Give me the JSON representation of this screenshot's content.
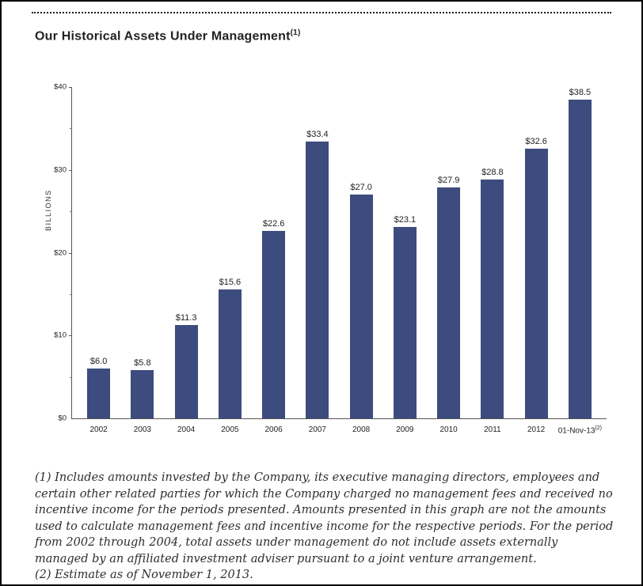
{
  "title": {
    "text": "Our Historical Assets Under Management",
    "superscript": "(1)"
  },
  "chart_data": {
    "type": "bar",
    "title": "Our Historical Assets Under Management",
    "ylabel": "BILLIONS",
    "xlabel": "",
    "ylim": [
      0,
      40
    ],
    "grid": "off",
    "bar_color": "#3d4b7e",
    "y_ticks": [
      "$40",
      "$30",
      "$20",
      "$10",
      "$0"
    ],
    "categories": [
      "2002",
      "2003",
      "2004",
      "2005",
      "2006",
      "2007",
      "2008",
      "2009",
      "2010",
      "2011",
      "2012",
      "01-Nov-13"
    ],
    "last_category_superscript": "(2)",
    "values": [
      6.0,
      5.8,
      11.3,
      15.6,
      22.6,
      33.4,
      27.0,
      23.1,
      27.9,
      28.8,
      32.6,
      38.5
    ],
    "value_labels": [
      "$6.0",
      "$5.8",
      "$11.3",
      "$15.6",
      "$22.6",
      "$33.4",
      "$27.0",
      "$23.1",
      "$27.9",
      "$28.8",
      "$32.6",
      "$38.5"
    ]
  },
  "footnotes": {
    "note1": "(1) Includes amounts invested by the Company, its executive managing directors, employees and certain other related parties for which the Company charged no management fees and received no incentive income for the periods presented. Amounts presented in this graph are not the amounts used to calculate management fees and incentive income for the respective periods. For the period from 2002 through 2004, total assets under management do not include assets externally managed by an affiliated investment adviser pursuant to a joint venture arrangement.",
    "note2": "(2) Estimate as of November 1, 2013."
  }
}
